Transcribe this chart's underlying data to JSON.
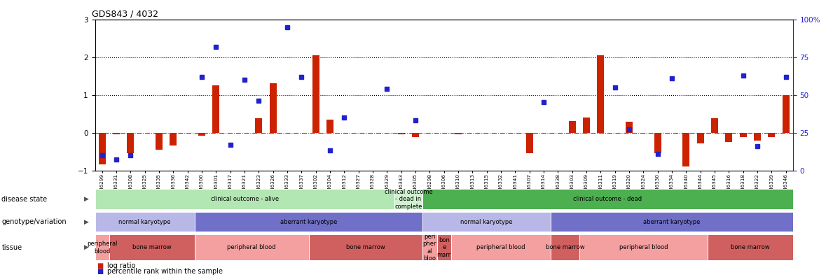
{
  "title": "GDS843 / 4032",
  "samples": [
    "GSM6299",
    "GSM6331",
    "GSM6308",
    "GSM6325",
    "GSM6335",
    "GSM6336",
    "GSM6342",
    "GSM6300",
    "GSM6301",
    "GSM6317",
    "GSM6321",
    "GSM6323",
    "GSM6326",
    "GSM6333",
    "GSM6337",
    "GSM6302",
    "GSM6304",
    "GSM6312",
    "GSM6327",
    "GSM6328",
    "GSM6329",
    "GSM6343",
    "GSM6305",
    "GSM6298",
    "GSM6306",
    "GSM6310",
    "GSM6313",
    "GSM6315",
    "GSM6332",
    "GSM6341",
    "GSM6307",
    "GSM6314",
    "GSM6338",
    "GSM6303",
    "GSM6309",
    "GSM6311",
    "GSM6319",
    "GSM6320",
    "GSM6324",
    "GSM6330",
    "GSM6334",
    "GSM6340",
    "GSM6344",
    "GSM6345",
    "GSM6316",
    "GSM6318",
    "GSM6322",
    "GSM6339",
    "GSM6346"
  ],
  "log_ratio": [
    -0.85,
    -0.05,
    -0.55,
    0.0,
    -0.45,
    -0.35,
    0.0,
    -0.08,
    1.25,
    0.0,
    0.0,
    0.38,
    1.3,
    0.0,
    0.0,
    2.05,
    0.35,
    0.0,
    0.0,
    0.0,
    0.0,
    -0.05,
    -0.12,
    0.0,
    0.0,
    -0.05,
    0.0,
    0.0,
    0.0,
    0.0,
    -0.55,
    0.0,
    0.0,
    0.3,
    0.4,
    2.05,
    0.0,
    0.28,
    0.0,
    -0.55,
    0.0,
    -0.9,
    -0.28,
    0.38,
    -0.25,
    -0.12,
    -0.22,
    -0.12,
    1.0
  ],
  "percentile_pct": [
    10,
    7,
    10,
    0,
    0,
    0,
    0,
    62,
    82,
    17,
    60,
    46,
    0,
    95,
    62,
    0,
    13,
    35,
    0,
    0,
    54,
    0,
    33,
    0,
    0,
    0,
    0,
    0,
    0,
    0,
    0,
    45,
    0,
    0,
    0,
    0,
    55,
    27,
    0,
    11,
    61,
    0,
    0,
    0,
    0,
    63,
    16,
    0,
    62
  ],
  "disease_state_blocks": [
    {
      "label": "clinical outcome - alive",
      "start": 0,
      "end": 21,
      "color": "#b2e6b2"
    },
    {
      "label": "clinical outcome\n- dead in\ncomplete",
      "start": 21,
      "end": 23,
      "color": "#d0f0d0"
    },
    {
      "label": "clinical outcome - dead",
      "start": 23,
      "end": 49,
      "color": "#4caf50"
    }
  ],
  "genotype_blocks": [
    {
      "label": "normal karyotype",
      "start": 0,
      "end": 7,
      "color": "#b8b8e8"
    },
    {
      "label": "aberrant karyotype",
      "start": 7,
      "end": 23,
      "color": "#7070c8"
    },
    {
      "label": "normal karyotype",
      "start": 23,
      "end": 32,
      "color": "#b8b8e8"
    },
    {
      "label": "aberrant karyotype",
      "start": 32,
      "end": 49,
      "color": "#7070c8"
    }
  ],
  "tissue_blocks": [
    {
      "label": "peripheral\nblood",
      "start": 0,
      "end": 1,
      "color": "#f4a0a0"
    },
    {
      "label": "bone marrow",
      "start": 1,
      "end": 7,
      "color": "#d06060"
    },
    {
      "label": "peripheral blood",
      "start": 7,
      "end": 15,
      "color": "#f4a0a0"
    },
    {
      "label": "bone marrow",
      "start": 15,
      "end": 23,
      "color": "#d06060"
    },
    {
      "label": "peri\npher\nal\nbloo",
      "start": 23,
      "end": 24,
      "color": "#f4a0a0"
    },
    {
      "label": "bon\ne\nmarr",
      "start": 24,
      "end": 25,
      "color": "#d06060"
    },
    {
      "label": "peripheral blood",
      "start": 25,
      "end": 32,
      "color": "#f4a0a0"
    },
    {
      "label": "bone marrow",
      "start": 32,
      "end": 34,
      "color": "#d06060"
    },
    {
      "label": "peripheral blood",
      "start": 34,
      "end": 43,
      "color": "#f4a0a0"
    },
    {
      "label": "bone marrow",
      "start": 43,
      "end": 49,
      "color": "#d06060"
    }
  ],
  "ylim_left": [
    -1.0,
    3.0
  ],
  "yticks_left": [
    -1,
    0,
    1,
    2,
    3
  ],
  "hlines_pct": [
    75,
    50
  ],
  "zero_line_color": "#cc2222",
  "bar_color": "#cc2200",
  "square_color": "#2222cc"
}
